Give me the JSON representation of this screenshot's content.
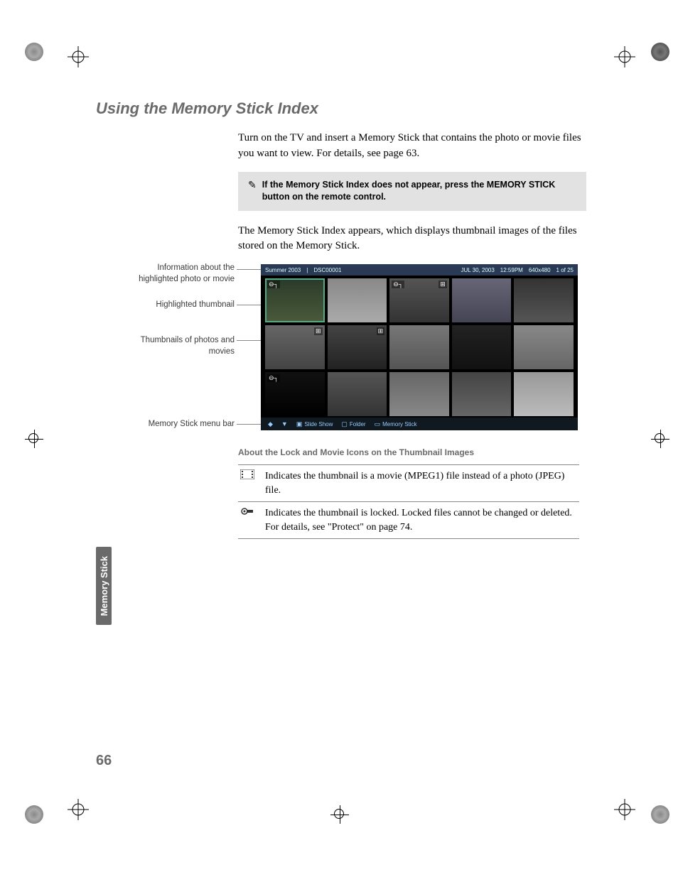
{
  "section_title": "Using the Memory Stick Index",
  "intro_para": "Turn on the TV and insert a Memory Stick that contains the photo or movie files you want to view. For details, see page 63.",
  "note_text": "If the Memory Stick Index does not appear, press the MEMORY STICK button on the remote control.",
  "after_note_para": "The Memory Stick Index appears, which displays thumbnail images of the files stored on the Memory Stick.",
  "callouts": {
    "info": "Information about the\nhighlighted photo or movie",
    "highlight": "Highlighted thumbnail",
    "thumbs": "Thumbnails of photos and\nmovies",
    "menubar": "Memory Stick menu bar"
  },
  "screenshot": {
    "header": {
      "folder": "Summer 2003",
      "file": "DSC00001",
      "date": "JUL 30, 2003",
      "time": "12:59PM",
      "dims": "640x480",
      "counter": "1 of 25"
    },
    "menubar": {
      "slideshow": "Slide Show",
      "folder": "Folder",
      "memstick": "Memory Stick"
    }
  },
  "sub_heading": "About the Lock and Movie Icons on the Thumbnail Images",
  "icon_rows": [
    {
      "desc": "Indicates the thumbnail is a movie (MPEG1) file instead of a photo (JPEG) file."
    },
    {
      "desc": "Indicates the thumbnail is locked. Locked files cannot be changed or deleted. For details, see \"Protect\" on page 74."
    }
  ],
  "side_tab": "Memory Stick",
  "page_number": "66",
  "colors": {
    "gray_text": "#6a6a6a",
    "note_bg": "#e2e2e2",
    "rule": "#888888"
  }
}
